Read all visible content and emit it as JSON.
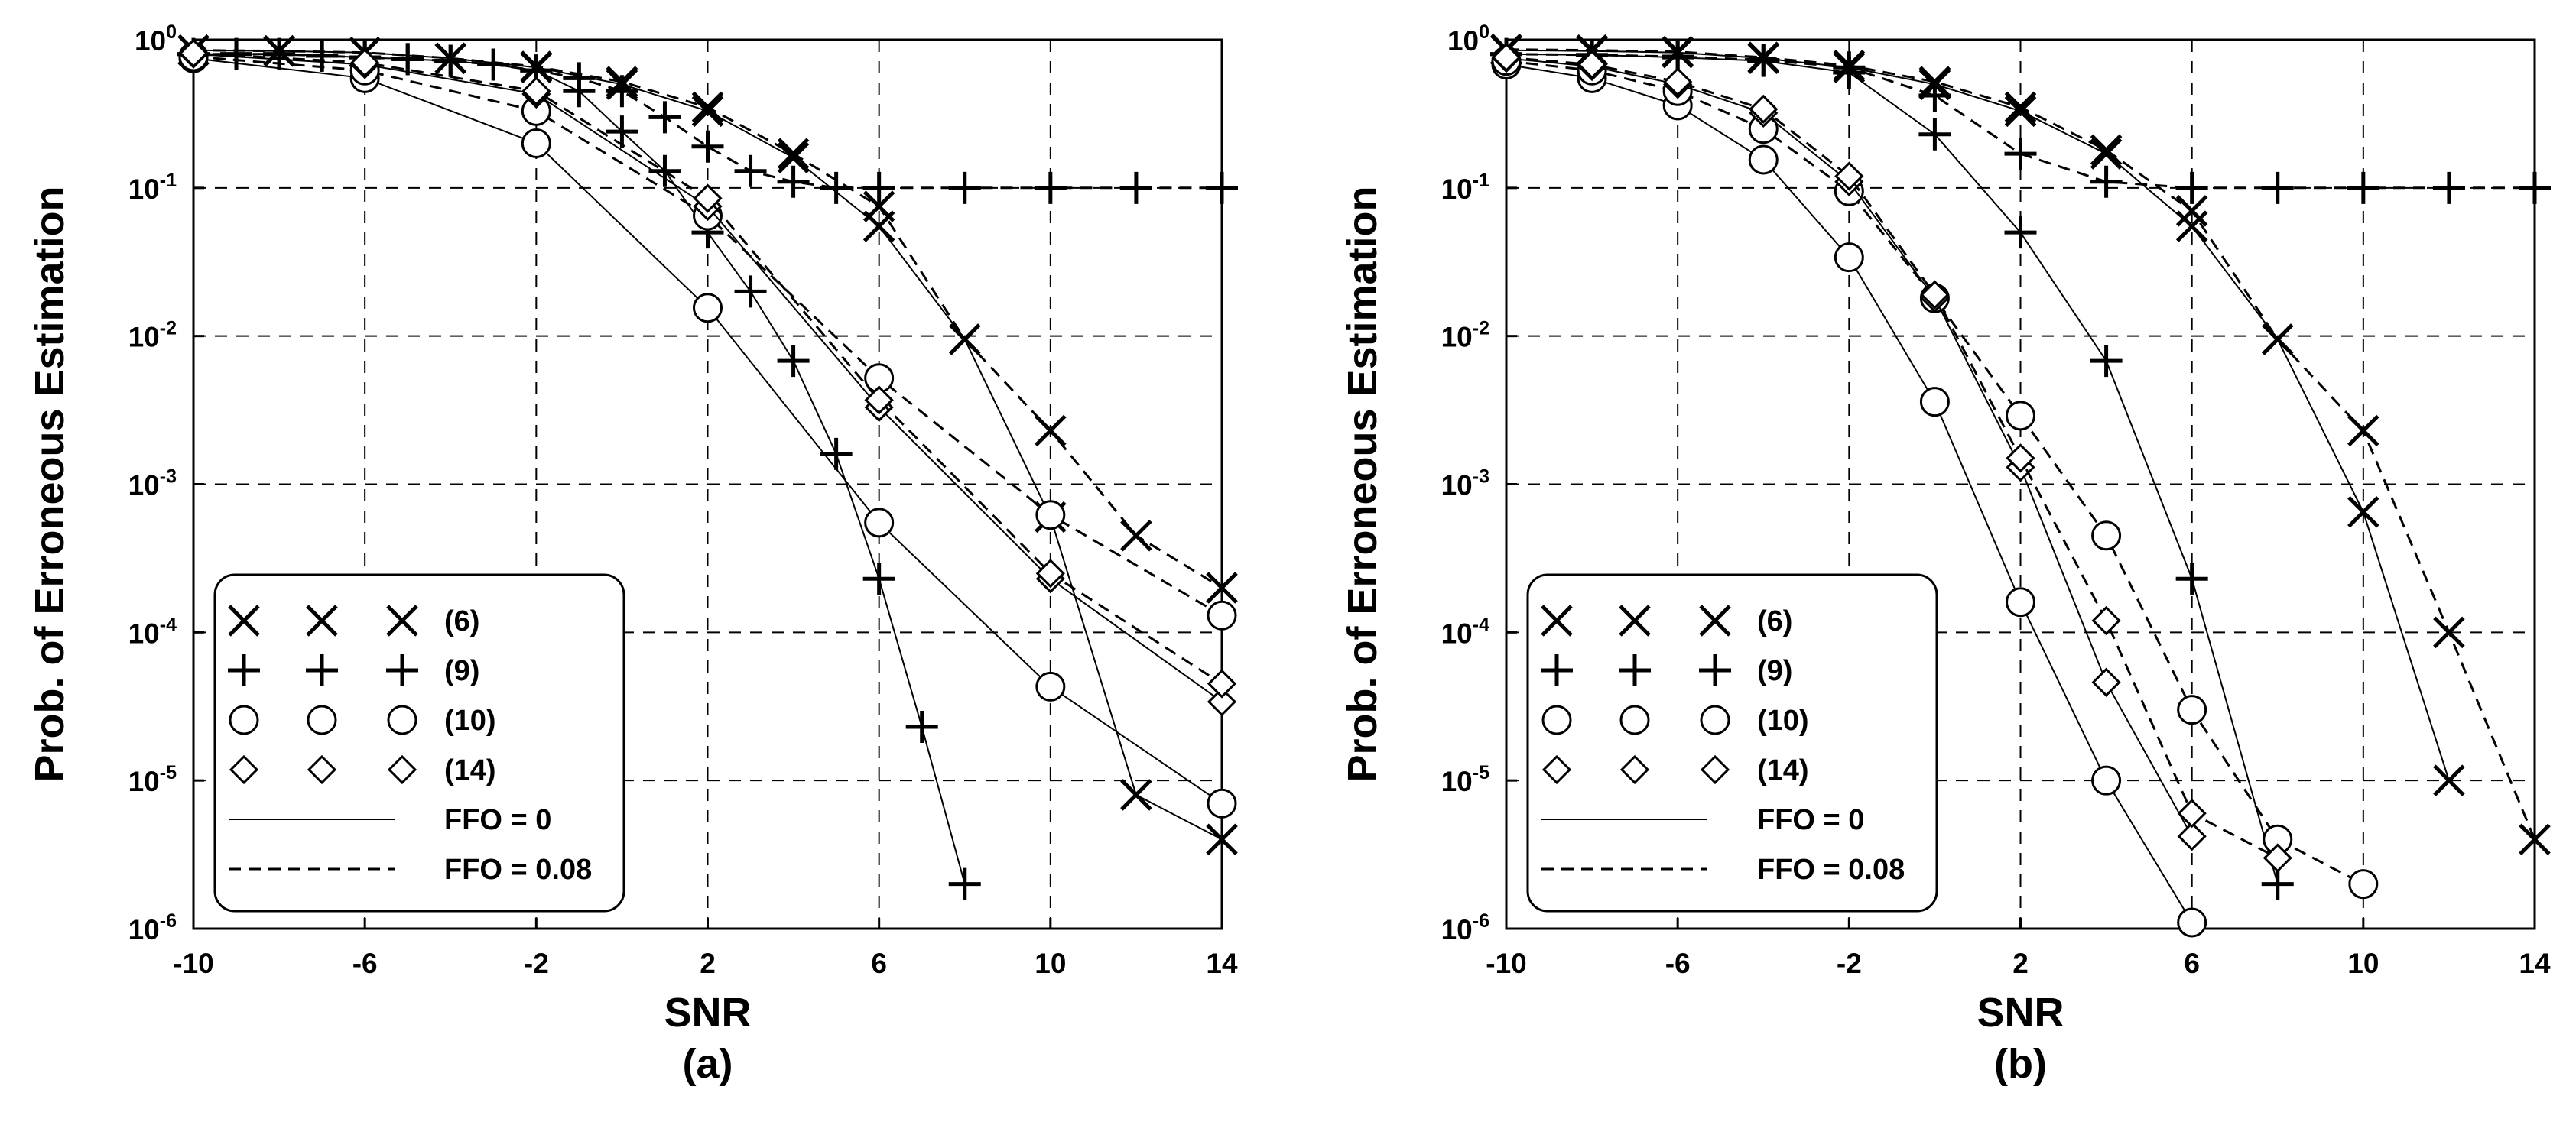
{
  "chart_data": [
    {
      "type": "line",
      "panel_label": "(a)",
      "xlabel": "SNR",
      "ylabel": "Prob. of Erroneous Estimation",
      "xlim": [
        -10,
        14
      ],
      "ylim": [
        1e-06,
        1
      ],
      "yscale": "log",
      "grid": "dashed",
      "x_ticks": [
        "-10",
        "-6",
        "-2",
        "2",
        "6",
        "10",
        "14"
      ],
      "y_ticks": [
        {
          "base": "10",
          "exp": "0"
        },
        {
          "base": "10",
          "exp": "-1"
        },
        {
          "base": "10",
          "exp": "-2"
        },
        {
          "base": "10",
          "exp": "-3"
        },
        {
          "base": "10",
          "exp": "-4"
        },
        {
          "base": "10",
          "exp": "-5"
        },
        {
          "base": "10",
          "exp": "-6"
        }
      ],
      "legend_position": "bottom-left",
      "legend": {
        "markers": [
          {
            "marker": "x",
            "label": "(6)"
          },
          {
            "marker": "plus",
            "label": "(9)"
          },
          {
            "marker": "circle",
            "label": "(10)"
          },
          {
            "marker": "diamond",
            "label": "(14)"
          }
        ],
        "lines": [
          {
            "style": "solid",
            "label": "FFO = 0"
          },
          {
            "style": "dashed",
            "label": "FFO = 0.08"
          }
        ]
      },
      "series": [
        {
          "marker": "x",
          "line": "solid",
          "x": [
            -10,
            -8,
            -6,
            -4,
            -2,
            0,
            2,
            4,
            6,
            8,
            10,
            12,
            14
          ],
          "y": [
            0.85,
            0.84,
            0.82,
            0.75,
            0.65,
            0.5,
            0.33,
            0.16,
            0.055,
            0.0095,
            0.0006,
            8e-06,
            4e-06
          ]
        },
        {
          "marker": "x",
          "line": "dashed",
          "x": [
            -10,
            -8,
            -6,
            -4,
            -2,
            0,
            2,
            4,
            6,
            8,
            10,
            12,
            14
          ],
          "y": [
            0.85,
            0.84,
            0.82,
            0.75,
            0.66,
            0.52,
            0.35,
            0.17,
            0.075,
            0.0095,
            0.0023,
            0.00045,
            0.0002
          ]
        },
        {
          "marker": "plus",
          "line": "solid",
          "x": [
            -10,
            -9,
            -8,
            -7,
            -6,
            -5,
            -4,
            -3,
            -2,
            -1,
            0,
            1,
            2,
            3,
            4,
            5,
            6,
            7,
            8
          ],
          "y": [
            0.8,
            0.8,
            0.8,
            0.78,
            0.76,
            0.74,
            0.72,
            0.68,
            0.62,
            0.45,
            0.24,
            0.13,
            0.05,
            0.02,
            0.0068,
            0.0016,
            0.00023,
            2.3e-05,
            2e-06
          ]
        },
        {
          "marker": "plus",
          "line": "dashed",
          "x": [
            -10,
            -9,
            -8,
            -7,
            -6,
            -5,
            -4,
            -3,
            -2,
            -1,
            0,
            1,
            2,
            3,
            4,
            5,
            6,
            8,
            10,
            12,
            14
          ],
          "y": [
            0.8,
            0.8,
            0.8,
            0.78,
            0.76,
            0.74,
            0.72,
            0.68,
            0.62,
            0.55,
            0.45,
            0.3,
            0.19,
            0.13,
            0.11,
            0.1,
            0.1,
            0.1,
            0.1,
            0.1,
            0.1
          ]
        },
        {
          "marker": "circle",
          "line": "solid",
          "x": [
            -10,
            -6,
            -2,
            2,
            6,
            10,
            14
          ],
          "y": [
            0.75,
            0.55,
            0.2,
            0.0155,
            0.00055,
            4.3e-05,
            7e-06
          ]
        },
        {
          "marker": "circle",
          "line": "dashed",
          "x": [
            -10,
            -6,
            -2,
            2,
            6,
            10,
            14
          ],
          "y": [
            0.77,
            0.62,
            0.33,
            0.065,
            0.0052,
            0.00062,
            0.00013
          ]
        },
        {
          "marker": "diamond",
          "line": "solid",
          "x": [
            -10,
            -6,
            -2,
            2,
            6,
            10,
            14
          ],
          "y": [
            0.8,
            0.68,
            0.43,
            0.075,
            0.0033,
            0.00023,
            3.4e-05
          ]
        },
        {
          "marker": "diamond",
          "line": "dashed",
          "x": [
            -10,
            -6,
            -2,
            2,
            6,
            10,
            14
          ],
          "y": [
            0.81,
            0.7,
            0.45,
            0.085,
            0.0037,
            0.00025,
            4.5e-05
          ]
        }
      ]
    },
    {
      "type": "line",
      "panel_label": "(b)",
      "xlabel": "SNR",
      "ylabel": "Prob. of Erroneous Estimation",
      "xlim": [
        -10,
        14
      ],
      "ylim": [
        1e-06,
        1
      ],
      "yscale": "log",
      "grid": "dashed",
      "x_ticks": [
        "-10",
        "-6",
        "-2",
        "2",
        "6",
        "10",
        "14"
      ],
      "y_ticks": [
        {
          "base": "10",
          "exp": "0"
        },
        {
          "base": "10",
          "exp": "-1"
        },
        {
          "base": "10",
          "exp": "-2"
        },
        {
          "base": "10",
          "exp": "-3"
        },
        {
          "base": "10",
          "exp": "-4"
        },
        {
          "base": "10",
          "exp": "-5"
        },
        {
          "base": "10",
          "exp": "-6"
        }
      ],
      "legend_position": "bottom-left",
      "legend": {
        "markers": [
          {
            "marker": "x",
            "label": "(6)"
          },
          {
            "marker": "plus",
            "label": "(9)"
          },
          {
            "marker": "circle",
            "label": "(10)"
          },
          {
            "marker": "diamond",
            "label": "(14)"
          }
        ],
        "lines": [
          {
            "style": "solid",
            "label": "FFO = 0"
          },
          {
            "style": "dashed",
            "label": "FFO = 0.08"
          }
        ]
      },
      "series": [
        {
          "marker": "x",
          "line": "solid",
          "x": [
            -10,
            -8,
            -6,
            -4,
            -2,
            0,
            2,
            4,
            6,
            8,
            10,
            12
          ],
          "y": [
            0.85,
            0.84,
            0.82,
            0.75,
            0.65,
            0.5,
            0.33,
            0.17,
            0.055,
            0.0095,
            0.00065,
            1e-05
          ]
        },
        {
          "marker": "x",
          "line": "dashed",
          "x": [
            -10,
            -8,
            -6,
            -4,
            -2,
            0,
            2,
            4,
            6,
            8,
            10,
            12,
            14
          ],
          "y": [
            0.86,
            0.85,
            0.83,
            0.76,
            0.67,
            0.52,
            0.35,
            0.18,
            0.07,
            0.0095,
            0.0023,
            0.0001,
            4e-06
          ]
        },
        {
          "marker": "plus",
          "line": "solid",
          "x": [
            -10,
            -8,
            -6,
            -4,
            -2,
            0,
            2,
            4,
            6,
            8
          ],
          "y": [
            0.8,
            0.79,
            0.76,
            0.72,
            0.6,
            0.23,
            0.05,
            0.0068,
            0.00023,
            2e-06
          ]
        },
        {
          "marker": "plus",
          "line": "dashed",
          "x": [
            -10,
            -8,
            -6,
            -4,
            -2,
            0,
            2,
            4,
            6,
            8,
            10,
            12,
            14
          ],
          "y": [
            0.8,
            0.79,
            0.77,
            0.73,
            0.65,
            0.42,
            0.17,
            0.11,
            0.1,
            0.1,
            0.1,
            0.1,
            0.1
          ]
        },
        {
          "marker": "circle",
          "line": "solid",
          "x": [
            -10,
            -8,
            -6,
            -4,
            -2,
            0,
            2,
            4,
            6
          ],
          "y": [
            0.68,
            0.55,
            0.36,
            0.155,
            0.034,
            0.0036,
            0.00016,
            1e-05,
            1.1e-06
          ]
        },
        {
          "marker": "circle",
          "line": "dashed",
          "x": [
            -10,
            -8,
            -6,
            -4,
            -2,
            0,
            2,
            4,
            6,
            8,
            10
          ],
          "y": [
            0.72,
            0.62,
            0.45,
            0.25,
            0.095,
            0.018,
            0.0029,
            0.00045,
            3e-05,
            4e-06,
            2e-06
          ]
        },
        {
          "marker": "diamond",
          "line": "solid",
          "x": [
            -10,
            -8,
            -6,
            -4,
            -2,
            0,
            2,
            4,
            6
          ],
          "y": [
            0.75,
            0.66,
            0.5,
            0.32,
            0.11,
            0.018,
            0.0013,
            4.6e-05,
            4.2e-06
          ]
        },
        {
          "marker": "diamond",
          "line": "dashed",
          "x": [
            -10,
            -8,
            -6,
            -4,
            -2,
            0,
            2,
            4,
            6,
            8
          ],
          "y": [
            0.76,
            0.68,
            0.52,
            0.34,
            0.12,
            0.019,
            0.0015,
            0.00012,
            6e-06,
            3e-06
          ]
        }
      ]
    }
  ]
}
